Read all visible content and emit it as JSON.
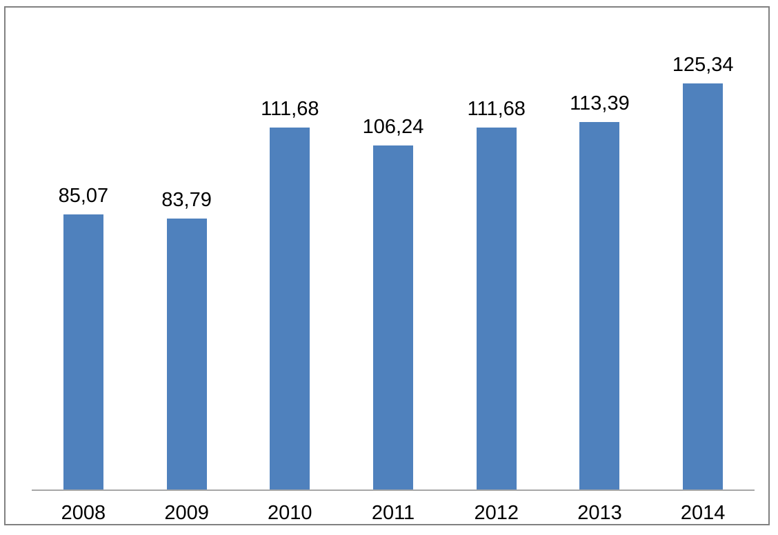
{
  "chart_data": {
    "type": "bar",
    "categories": [
      "2008",
      "2009",
      "2010",
      "2011",
      "2012",
      "2013",
      "2014"
    ],
    "values": [
      85.07,
      83.79,
      111.68,
      106.24,
      111.68,
      113.39,
      125.34
    ],
    "value_labels": [
      "85,07",
      "83,79",
      "111,68",
      "106,24",
      "111,68",
      "113,39",
      "125,34"
    ],
    "title": "",
    "xlabel": "",
    "ylabel": "",
    "ylim": [
      0,
      130
    ],
    "grid": "off",
    "legend": "none",
    "data_labels": "above bars, comma decimal separator",
    "bar_color": "#4F81BD",
    "axis_line_color": "#A6A6A6",
    "frame_border_color": "#808080",
    "label_color": "#000000",
    "background_color": "#FFFFFF"
  }
}
